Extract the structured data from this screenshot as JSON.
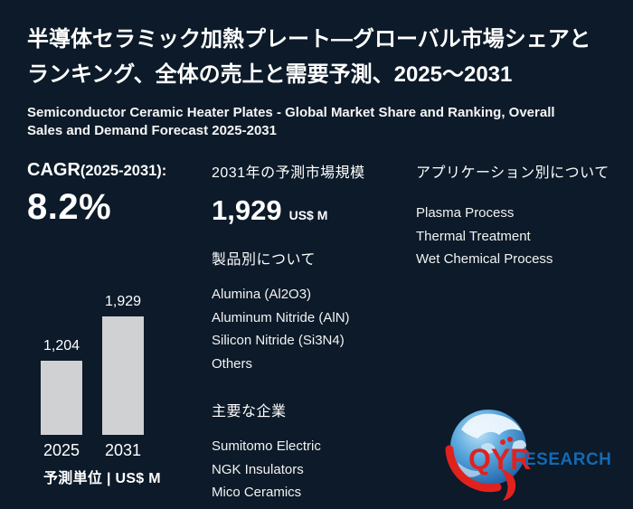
{
  "page": {
    "background": "#0c1a29",
    "title_lines": [
      "半導体セラミック加熱プレート―グローバル市場シェアと",
      "ランキング、全体の売上と需要予測、2025～2031"
    ],
    "subtitle_lines": [
      "Semiconductor Ceramic Heater Plates - Global Market Share and Ranking, Overall",
      "Sales and Demand Forecast 2025-2031"
    ]
  },
  "cagr": {
    "label": "CAGR",
    "range": "(2025-2031):",
    "value": "8.2%"
  },
  "forecast": {
    "heading": "2031年の予測市場規模",
    "value": "1,929",
    "unit": "US$ M"
  },
  "products": {
    "heading": "製品別について",
    "items": [
      "Alumina (Al2O3)",
      "Aluminum Nitride (AlN)",
      "Silicon Nitride (Si3N4)",
      "Others"
    ]
  },
  "companies": {
    "heading": "主要な企業",
    "items": [
      "Sumitomo Electric",
      "NGK Insulators",
      "Mico Ceramics"
    ]
  },
  "applications": {
    "heading": "アプリケーション別について",
    "items": [
      "Plasma Process",
      "Thermal Treatment",
      "Wet Chemical Process"
    ]
  },
  "chart_data": {
    "type": "bar",
    "categories": [
      "2025",
      "2031"
    ],
    "values": [
      1204,
      1929
    ],
    "value_labels": [
      "1,204",
      "1,929"
    ],
    "title": "",
    "xlabel": "",
    "ylabel": "US$ M",
    "ylim": [
      0,
      1929
    ],
    "grid": false,
    "legend": false,
    "bar_color": "#d0d1d2",
    "unit_note": "予測単位 | US$ M"
  },
  "logo": {
    "text_qyr": "QYR",
    "text_research": "ESEARCH",
    "red": "#e0221e",
    "blue": "#1569b3"
  }
}
